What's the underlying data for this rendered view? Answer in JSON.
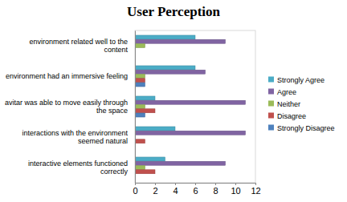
{
  "chart_data": {
    "type": "bar",
    "orientation": "horizontal",
    "title": "User Perception",
    "categories": [
      "environment related well to the content",
      "environment had an immersive feeling",
      "avitar was able to move easily through the space",
      "interactions with the environment seemed natural",
      "interactive elements functioned correctly"
    ],
    "series": [
      {
        "name": "Strongly Agree",
        "color": "#4bacc6",
        "values": [
          6,
          6,
          2,
          4,
          3
        ]
      },
      {
        "name": "Agree",
        "color": "#8064a2",
        "values": [
          9,
          7,
          11,
          11,
          9
        ]
      },
      {
        "name": "Neither",
        "color": "#9bbb59",
        "values": [
          1,
          1,
          1,
          0,
          1
        ]
      },
      {
        "name": "Disagree",
        "color": "#c0504d",
        "values": [
          0,
          1,
          2,
          1,
          2
        ]
      },
      {
        "name": "Strongly Disagree",
        "color": "#4f81bd",
        "values": [
          0,
          1,
          1,
          0,
          0
        ]
      }
    ],
    "xlim": [
      0,
      12
    ],
    "xticks": [
      0,
      2,
      4,
      6,
      8,
      10,
      12
    ],
    "grid": false,
    "legend": "right"
  }
}
